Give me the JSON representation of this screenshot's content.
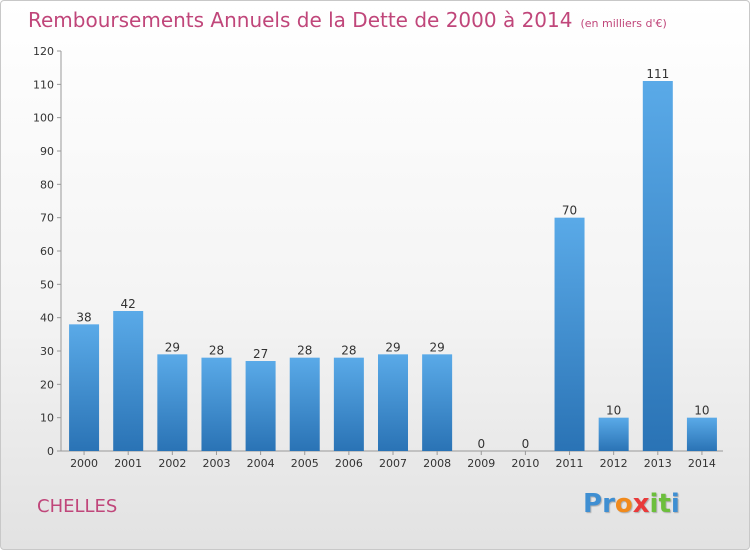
{
  "title": "Remboursements Annuels de la Dette de 2000 à 2014",
  "unit_note": "(en milliers d'€)",
  "city": "CHELLES",
  "logo": {
    "letters": [
      "P",
      "r",
      "o",
      "x",
      "i",
      "t",
      "i"
    ],
    "colors": [
      "#3f8fd2",
      "#3f8fd2",
      "#f18a1c",
      "#e93a3a",
      "#6cbf3c",
      "#6cbf3c",
      "#3f8fd2"
    ]
  },
  "colors": {
    "title": "#c0467a",
    "bar_top": "#5aaae8",
    "bar_bottom": "#2a73b5"
  },
  "chart_data": {
    "type": "bar",
    "title": "Remboursements Annuels de la Dette de 2000 à 2014",
    "xlabel": "",
    "ylabel": "",
    "ylim": [
      0,
      120
    ],
    "yticks": [
      0,
      10,
      20,
      30,
      40,
      50,
      60,
      70,
      80,
      90,
      100,
      110,
      120
    ],
    "grid": false,
    "categories": [
      "2000",
      "2001",
      "2002",
      "2003",
      "2004",
      "2005",
      "2006",
      "2007",
      "2008",
      "2009",
      "2010",
      "2011",
      "2012",
      "2013",
      "2014"
    ],
    "values": [
      38,
      42,
      29,
      28,
      27,
      28,
      28,
      29,
      29,
      0,
      0,
      70,
      10,
      111,
      10
    ]
  }
}
